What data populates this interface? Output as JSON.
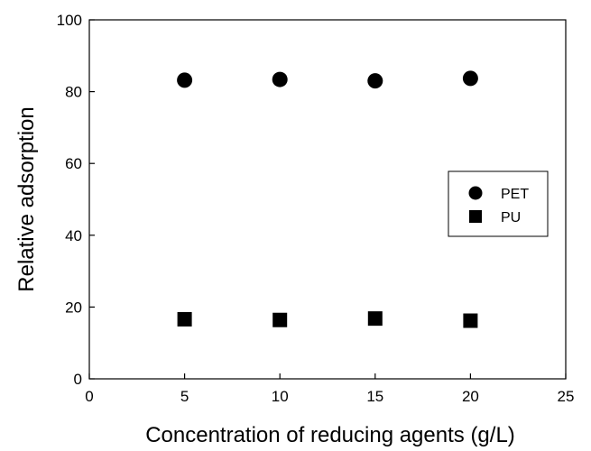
{
  "chart_data": {
    "type": "scatter",
    "title": "",
    "xlabel": "Concentration of reducing agents (g/L)",
    "ylabel": "Relative adsorption",
    "xlim": [
      0,
      25
    ],
    "ylim": [
      0,
      100
    ],
    "x_ticks": [
      0,
      5,
      10,
      15,
      20,
      25
    ],
    "y_ticks": [
      0,
      20,
      40,
      60,
      80,
      100
    ],
    "grid": false,
    "legend_position": "center-right",
    "series": [
      {
        "name": "PET",
        "marker": "circle",
        "color": "#000000",
        "x": [
          5,
          10,
          15,
          20
        ],
        "y": [
          83.2,
          83.4,
          83.0,
          83.7
        ]
      },
      {
        "name": "PU",
        "marker": "square",
        "color": "#000000",
        "x": [
          5,
          10,
          15,
          20
        ],
        "y": [
          16.6,
          16.4,
          16.8,
          16.2
        ]
      }
    ]
  }
}
